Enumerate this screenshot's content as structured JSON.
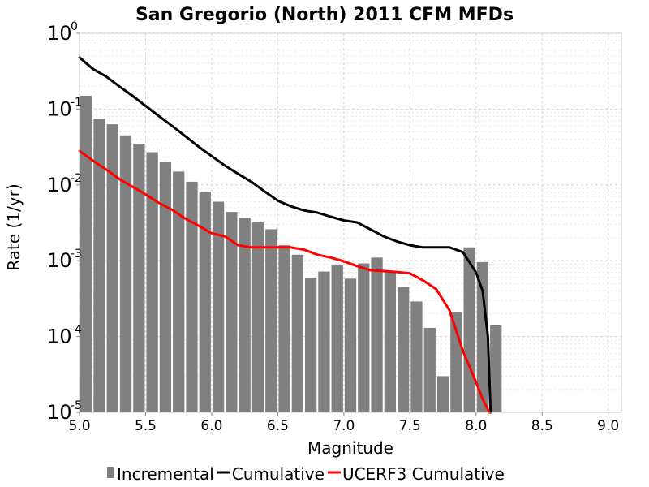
{
  "chart_data": {
    "type": "bar+line",
    "title": "San Gregorio (North) 2011 CFM MFDs",
    "xlabel": "Magnitude",
    "ylabel": "Rate (1/yr)",
    "xlim": [
      5.0,
      9.1
    ],
    "ylim": [
      1e-05,
      1
    ],
    "yscale": "log",
    "grid": true,
    "legend_position": "bottom",
    "x_ticks": [
      "5.0",
      "5.5",
      "6.0",
      "6.5",
      "7.0",
      "7.5",
      "8.0",
      "8.5",
      "9.0"
    ],
    "y_ticks": [
      {
        "base": "10",
        "exp": "0"
      },
      {
        "base": "10",
        "exp": "-1"
      },
      {
        "base": "10",
        "exp": "-2"
      },
      {
        "base": "10",
        "exp": "-3"
      },
      {
        "base": "10",
        "exp": "-4"
      },
      {
        "base": "10",
        "exp": "-5"
      }
    ],
    "series": [
      {
        "name": "Incremental",
        "kind": "bar",
        "color": "#808080",
        "x": [
          5.05,
          5.15,
          5.25,
          5.35,
          5.45,
          5.55,
          5.65,
          5.75,
          5.85,
          5.95,
          6.05,
          6.15,
          6.25,
          6.35,
          6.45,
          6.55,
          6.65,
          6.75,
          6.85,
          6.95,
          7.05,
          7.15,
          7.25,
          7.35,
          7.45,
          7.55,
          7.65,
          7.75,
          7.85,
          7.95,
          8.05,
          8.15
        ],
        "values": [
          0.15,
          0.075,
          0.063,
          0.045,
          0.035,
          0.027,
          0.02,
          0.015,
          0.011,
          0.008,
          0.006,
          0.0044,
          0.0037,
          0.0032,
          0.0026,
          0.0016,
          0.0012,
          0.0006,
          0.00072,
          0.00088,
          0.00058,
          0.00092,
          0.0011,
          0.00072,
          0.00045,
          0.00029,
          0.00013,
          3e-05,
          0.00021,
          0.0015,
          0.00096,
          0.00014
        ]
      },
      {
        "name": "Cumulative",
        "kind": "line",
        "color": "#000000",
        "x": [
          5.0,
          5.1,
          5.2,
          5.3,
          5.4,
          5.5,
          5.6,
          5.7,
          5.8,
          5.9,
          6.0,
          6.1,
          6.2,
          6.3,
          6.4,
          6.5,
          6.6,
          6.7,
          6.8,
          6.9,
          7.0,
          7.1,
          7.2,
          7.3,
          7.4,
          7.5,
          7.6,
          7.7,
          7.8,
          7.9,
          8.0,
          8.05,
          8.09,
          8.11
        ],
        "values": [
          0.48,
          0.34,
          0.27,
          0.2,
          0.15,
          0.11,
          0.081,
          0.06,
          0.044,
          0.032,
          0.024,
          0.018,
          0.014,
          0.011,
          0.0082,
          0.0062,
          0.0052,
          0.0046,
          0.0043,
          0.0038,
          0.0034,
          0.0032,
          0.0026,
          0.0021,
          0.0018,
          0.0016,
          0.0015,
          0.0015,
          0.0015,
          0.0013,
          0.0007,
          0.0004,
          0.0001,
          1e-05
        ]
      },
      {
        "name": "UCERF3 Cumulative",
        "kind": "line",
        "color": "#ff0000",
        "x": [
          5.0,
          5.1,
          5.2,
          5.3,
          5.4,
          5.5,
          5.6,
          5.7,
          5.8,
          5.9,
          6.0,
          6.1,
          6.2,
          6.3,
          6.4,
          6.5,
          6.6,
          6.7,
          6.8,
          6.9,
          7.0,
          7.1,
          7.2,
          7.3,
          7.4,
          7.5,
          7.6,
          7.7,
          7.8,
          7.9,
          8.0,
          8.05,
          8.1
        ],
        "values": [
          0.028,
          0.021,
          0.016,
          0.012,
          0.0095,
          0.0075,
          0.0058,
          0.0047,
          0.0036,
          0.0029,
          0.0023,
          0.0021,
          0.0016,
          0.0015,
          0.0015,
          0.0015,
          0.0015,
          0.0014,
          0.0012,
          0.0011,
          0.00098,
          0.00085,
          0.00075,
          0.00073,
          0.00071,
          0.00068,
          0.00055,
          0.00042,
          0.00022,
          6.5e-05,
          2.5e-05,
          1.5e-05,
          1e-05
        ]
      }
    ]
  }
}
